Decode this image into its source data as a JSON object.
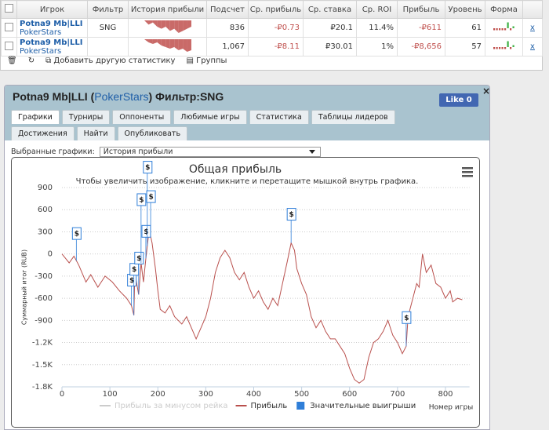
{
  "table": {
    "header": [
      "Игрок",
      "Фильтр",
      "История прибыли",
      "Подсчет",
      "Ср. прибыль",
      "Ср. ставка",
      "Ср. ROI",
      "Прибыль",
      "Уровень",
      "Форма"
    ],
    "rows": [
      {
        "player": "Potna9 Mb|LLI",
        "site": "PokerStars",
        "filter": "SNG",
        "history": [
          0,
          -2,
          -1,
          -3,
          -4,
          -3,
          -5,
          -4,
          -6,
          -5,
          -4,
          -3
        ],
        "count": "836",
        "avg_profit": "-₽0.73",
        "avg_stake": "₽20.1",
        "roi": "11.4%",
        "profit": "-₽611",
        "level": "61",
        "form": [
          -1,
          -1,
          -1,
          -1,
          -1,
          3,
          -1,
          1
        ],
        "remove": "x"
      },
      {
        "player": "Potna9 Mb|LLI",
        "site": "PokerStars",
        "filter": "",
        "history": [
          0,
          -2,
          -3,
          -2,
          -4,
          -5,
          -6,
          -5,
          -7,
          -6,
          -8,
          -7
        ],
        "count": "1,067",
        "avg_profit": "-₽8.11",
        "avg_stake": "₽30.01",
        "roi": "1%",
        "profit": "-₽8,656",
        "level": "57",
        "form": [
          -1,
          -1,
          -1,
          -1,
          -1,
          3,
          -1,
          1
        ],
        "remove": "x"
      }
    ]
  },
  "toolbar": {
    "add": "Добавить другую статистику",
    "groups": "Группы"
  },
  "panel": {
    "title_player": "Potna9 Mb|LLI (",
    "title_site": "PokerStars",
    "title_filter": ") Фильтр:SNG",
    "like": "Like 0",
    "close": "×",
    "tabs": [
      "Графики",
      "Турниры",
      "Оппоненты",
      "Любимые игры",
      "Статистика",
      "Таблицы лидеров",
      "Достижения",
      "Найти",
      "Опубликовать"
    ],
    "select_label": "Выбранные графики:",
    "select_value": "История прибыли"
  },
  "chart_data": {
    "type": "line",
    "title": "Общая прибыль",
    "subtitle": "Чтобы увеличить изображение, кликните и перетащите мышкой внутрь графика.",
    "y_label": "Суммарный итог (RUB)",
    "x_label": "Номер игры",
    "xlim": [
      0,
      850
    ],
    "ylim": [
      -1800,
      900
    ],
    "xticks": [
      0,
      100,
      200,
      300,
      400,
      500,
      600,
      700,
      800
    ],
    "yticks": [
      900,
      600,
      300,
      0,
      -300,
      -600,
      -900,
      {
        "value": -1200,
        "label": "-1.2K"
      },
      {
        "value": -1500,
        "label": "-1.5K"
      },
      {
        "value": -1800,
        "label": "-1.8K"
      }
    ],
    "grid": true,
    "series": [
      {
        "name": "Прибыль за минусом рейка",
        "color": "#cccccc",
        "visible": false
      },
      {
        "name": "Прибыль",
        "color": "#b9504d",
        "x": [
          0,
          5,
          15,
          25,
          35,
          50,
          60,
          75,
          90,
          105,
          120,
          135,
          145,
          150,
          152,
          160,
          165,
          170,
          175,
          182,
          188,
          195,
          200,
          205,
          215,
          225,
          235,
          250,
          260,
          270,
          280,
          290,
          300,
          310,
          320,
          330,
          340,
          350,
          360,
          370,
          380,
          390,
          400,
          410,
          420,
          430,
          440,
          450,
          460,
          470,
          478,
          485,
          490,
          500,
          510,
          520,
          530,
          540,
          550,
          560,
          570,
          580,
          590,
          600,
          610,
          620,
          630,
          640,
          650,
          660,
          670,
          680,
          690,
          700,
          710,
          718,
          722,
          730,
          740,
          745,
          752,
          760,
          770,
          780,
          790,
          800,
          810,
          815,
          825,
          835
        ],
        "values": [
          0,
          -40,
          -120,
          -30,
          -150,
          -380,
          -280,
          -450,
          -300,
          -380,
          -500,
          -600,
          -700,
          -830,
          -250,
          -550,
          -120,
          -380,
          -60,
          330,
          150,
          -200,
          -500,
          -750,
          -800,
          -700,
          -850,
          -950,
          -850,
          -1000,
          -1150,
          -1000,
          -850,
          -600,
          -250,
          -50,
          50,
          -50,
          -250,
          -350,
          -250,
          -450,
          -600,
          -500,
          -650,
          -750,
          -600,
          -700,
          -400,
          -100,
          150,
          50,
          -200,
          -400,
          -550,
          -850,
          -1000,
          -900,
          -1050,
          -1150,
          -1150,
          -1250,
          -1350,
          -1550,
          -1700,
          -1750,
          -1700,
          -1400,
          -1200,
          -1150,
          -1050,
          -900,
          -1100,
          -1200,
          -1350,
          -1250,
          -850,
          -650,
          -400,
          -450,
          0,
          -250,
          -150,
          -400,
          -450,
          -600,
          -500,
          -650,
          -600,
          -620
        ]
      },
      {
        "name": "Значительные выигрыши",
        "color": "#2f7ed8",
        "type": "flags",
        "label": "$",
        "x": [
          30,
          145,
          150,
          160,
          165,
          175,
          178,
          185,
          478,
          718
        ]
      }
    ]
  }
}
